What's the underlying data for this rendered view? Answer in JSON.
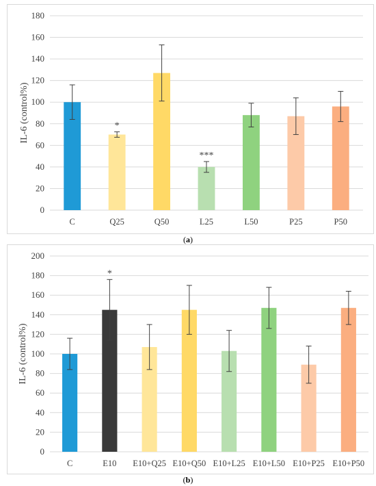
{
  "chart_data": [
    {
      "type": "bar",
      "ylabel": "IL-6 (control%)",
      "ylim": [
        0,
        180
      ],
      "ytick_step": 20,
      "grid": true,
      "categories": [
        "C",
        "Q25",
        "Q50",
        "L25",
        "L50",
        "P25",
        "P50"
      ],
      "values": [
        100,
        70,
        127,
        40,
        88,
        87,
        96
      ],
      "errors": [
        16,
        2.5,
        26,
        5,
        11,
        17,
        14
      ],
      "annotations": [
        "",
        "*",
        "",
        "***",
        "",
        "",
        ""
      ],
      "colors": [
        "#1f9ad6",
        "#ffe699",
        "#ffd966",
        "#b8dfb0",
        "#8fd27f",
        "#fdcaa8",
        "#fbae80"
      ]
    },
    {
      "type": "bar",
      "ylabel": "IL-6 (control%)",
      "ylim": [
        0,
        200
      ],
      "ytick_step": 20,
      "grid": true,
      "categories": [
        "C",
        "E10",
        "E10+Q25",
        "E10+Q50",
        "E10+L25",
        "E10+L50",
        "E10+P25",
        "E10+P50"
      ],
      "values": [
        100,
        145,
        107,
        145,
        103,
        147,
        89,
        147
      ],
      "errors": [
        16,
        31,
        23,
        25,
        21,
        21,
        19,
        17
      ],
      "annotations": [
        "",
        "*",
        "",
        "",
        "",
        "",
        "",
        ""
      ],
      "colors": [
        "#1f9ad6",
        "#3a3a3a",
        "#ffe699",
        "#ffd966",
        "#b8dfb0",
        "#8fd27f",
        "#fdcaa8",
        "#fbae80"
      ]
    }
  ],
  "captions": [
    {
      "open": "(",
      "letter": "a",
      "close": ")"
    },
    {
      "open": "(",
      "letter": "b",
      "close": ")"
    }
  ]
}
